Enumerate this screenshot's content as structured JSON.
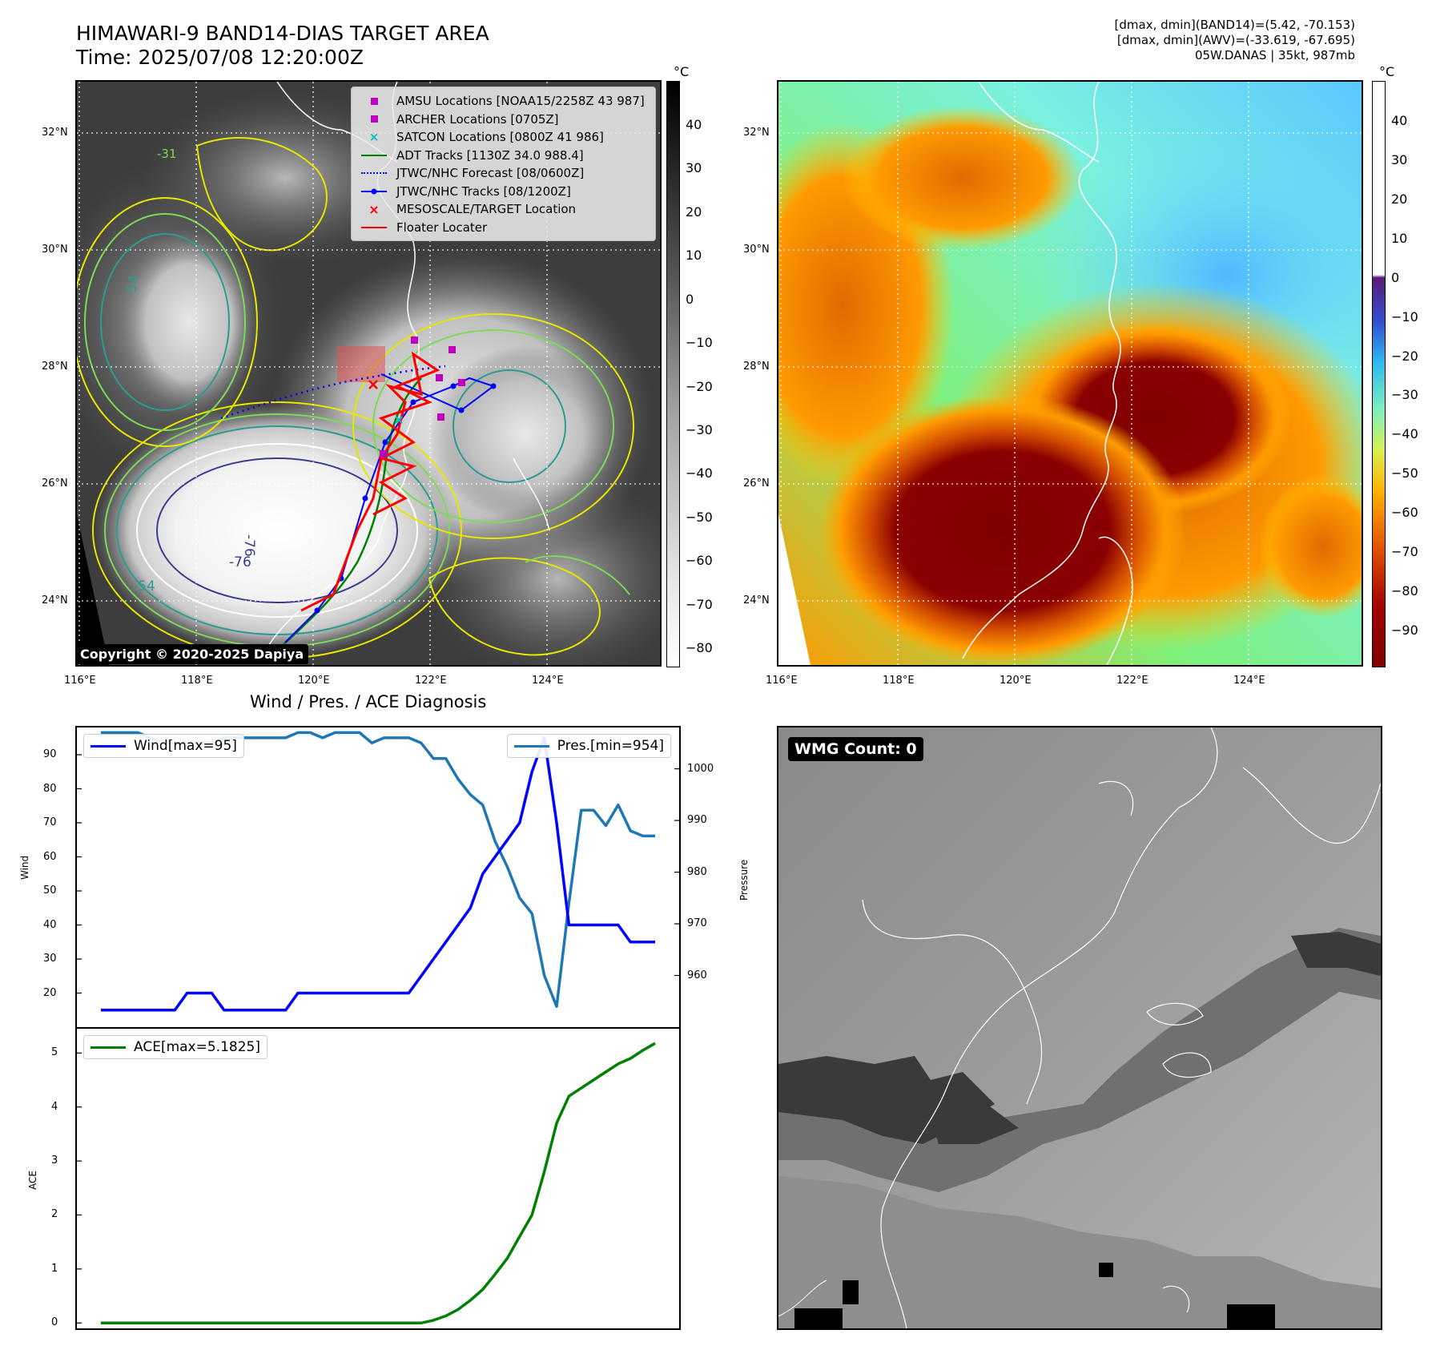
{
  "header": {
    "title_line1": "HIMAWARI-9 BAND14-DIAS TARGET AREA",
    "title_line2": "Time: 2025/07/08 12:20:00Z",
    "right_line1": "[dmax, dmin](BAND14)=(5.42, -70.153)",
    "right_line2": "[dmax, dmin](AWV)=(-33.619, -67.695)",
    "right_line3": "05W.DANAS | 35kt, 987mb"
  },
  "map": {
    "lon_ticks": [
      "116°E",
      "118°E",
      "120°E",
      "122°E",
      "124°E"
    ],
    "lat_ticks": [
      "32°N",
      "30°N",
      "28°N",
      "26°N",
      "24°N"
    ],
    "contour_labels": [
      "-76",
      "-76",
      "-54",
      "-54",
      "-31"
    ],
    "copyright": "Copyright © 2020-2025 Dapiya",
    "colorbar_unit": "°C",
    "left_colorbar_ticks": [
      "40",
      "30",
      "20",
      "10",
      "0",
      "−10",
      "−20",
      "−30",
      "−40",
      "−50",
      "−60",
      "−70",
      "−80"
    ],
    "right_colorbar_ticks": [
      "40",
      "30",
      "20",
      "10",
      "0",
      "−10",
      "−20",
      "−30",
      "−40",
      "−50",
      "−60",
      "−70",
      "−80",
      "−90"
    ],
    "colors": {
      "amsu": "#bf00bf",
      "archer": "#bf00bf",
      "satcon": "#00bfbf",
      "adt": "#008000",
      "forecast": "#0000ff",
      "tracks": "#0000ff",
      "target": "#ff0000",
      "floater": "#ff0000"
    }
  },
  "legend": {
    "items": [
      {
        "icon": "amsu-square-marker",
        "label": "AMSU Locations [NOAA15/2258Z 43 987]"
      },
      {
        "icon": "archer-square-marker",
        "label": "ARCHER Locations [0705Z]"
      },
      {
        "icon": "satcon-x-marker",
        "label": "SATCON Locations [0800Z 41 986]"
      },
      {
        "icon": "adt-line",
        "label": "ADT Tracks [1130Z 34.0 988.4]"
      },
      {
        "icon": "forecast-dotted-line",
        "label": "JTWC/NHC Forecast [08/0600Z]"
      },
      {
        "icon": "track-line-dot",
        "label": "JTWC/NHC Tracks [08/1200Z]"
      },
      {
        "icon": "target-x-marker",
        "label": "MESOSCALE/TARGET Location"
      },
      {
        "icon": "floater-line",
        "label": "Floater Locater"
      }
    ]
  },
  "diagnosis": {
    "title": "Wind / Pres. / ACE Diagnosis",
    "wind_legend": "Wind[max=95]",
    "pres_legend": "Pres.[min=954]",
    "ace_legend": "ACE[max=5.1825]",
    "wind_ylabel": "Wind",
    "pres_ylabel": "Pressure",
    "ace_ylabel": "ACE",
    "wind_color": "#0000ff",
    "pres_color": "#1f77b4",
    "ace_color": "#008000"
  },
  "wmg": {
    "label": "WMG Count: 0"
  },
  "chart_data": [
    {
      "type": "line",
      "name": "wind-pressure",
      "x": [
        0,
        1,
        2,
        3,
        4,
        5,
        6,
        7,
        8,
        9,
        10,
        11,
        12,
        13,
        14,
        15,
        16,
        17,
        18,
        19,
        20,
        21,
        22,
        23,
        24,
        25,
        26,
        27,
        28,
        29,
        30,
        31,
        32,
        33,
        34,
        35,
        36,
        37,
        38,
        39,
        40,
        41,
        42,
        43,
        44,
        45
      ],
      "series": [
        {
          "name": "Wind[max=95]",
          "axis": "left",
          "values": [
            15,
            15,
            15,
            15,
            15,
            15,
            15,
            20,
            20,
            20,
            15,
            15,
            15,
            15,
            15,
            15,
            20,
            20,
            20,
            20,
            20,
            20,
            20,
            20,
            20,
            20,
            25,
            30,
            35,
            40,
            45,
            55,
            60,
            65,
            70,
            85,
            95,
            70,
            40,
            40,
            40,
            40,
            40,
            35,
            35,
            35
          ]
        },
        {
          "name": "Pres.[min=954]",
          "axis": "right",
          "values": [
            1007,
            1007,
            1007,
            1007,
            1006,
            1005,
            1005,
            1005,
            1005,
            1005,
            1006,
            1006,
            1006,
            1006,
            1006,
            1006,
            1007,
            1007,
            1006,
            1007,
            1007,
            1007,
            1005,
            1006,
            1006,
            1006,
            1005,
            1002,
            1002,
            998,
            995,
            993,
            986,
            981,
            975,
            972,
            960,
            954,
            974,
            992,
            992,
            989,
            993,
            988,
            987,
            987
          ]
        }
      ],
      "ylim_left": [
        10,
        98
      ],
      "ylim_right": [
        950,
        1008
      ],
      "yticks_left": [
        20,
        30,
        40,
        50,
        60,
        70,
        80,
        90
      ],
      "yticks_right": [
        960,
        970,
        980,
        990,
        1000
      ],
      "ylabel_left": "Wind",
      "ylabel_right": "Pressure"
    },
    {
      "type": "line",
      "name": "ace",
      "x": [
        0,
        1,
        2,
        3,
        4,
        5,
        6,
        7,
        8,
        9,
        10,
        11,
        12,
        13,
        14,
        15,
        16,
        17,
        18,
        19,
        20,
        21,
        22,
        23,
        24,
        25,
        26,
        27,
        28,
        29,
        30,
        31,
        32,
        33,
        34,
        35,
        36,
        37,
        38,
        39,
        40,
        41,
        42,
        43,
        44,
        45
      ],
      "series": [
        {
          "name": "ACE[max=5.1825]",
          "values": [
            0,
            0,
            0,
            0,
            0,
            0,
            0,
            0,
            0,
            0,
            0,
            0,
            0,
            0,
            0,
            0,
            0,
            0,
            0,
            0,
            0,
            0,
            0,
            0,
            0,
            0,
            0,
            0.05,
            0.13,
            0.25,
            0.42,
            0.62,
            0.9,
            1.2,
            1.6,
            2.0,
            2.8,
            3.7,
            4.2,
            4.35,
            4.5,
            4.65,
            4.8,
            4.9,
            5.05,
            5.18
          ]
        }
      ],
      "ylim": [
        -0.1,
        5.45
      ],
      "yticks": [
        0,
        1,
        2,
        3,
        4,
        5
      ],
      "ylabel": "ACE"
    }
  ]
}
